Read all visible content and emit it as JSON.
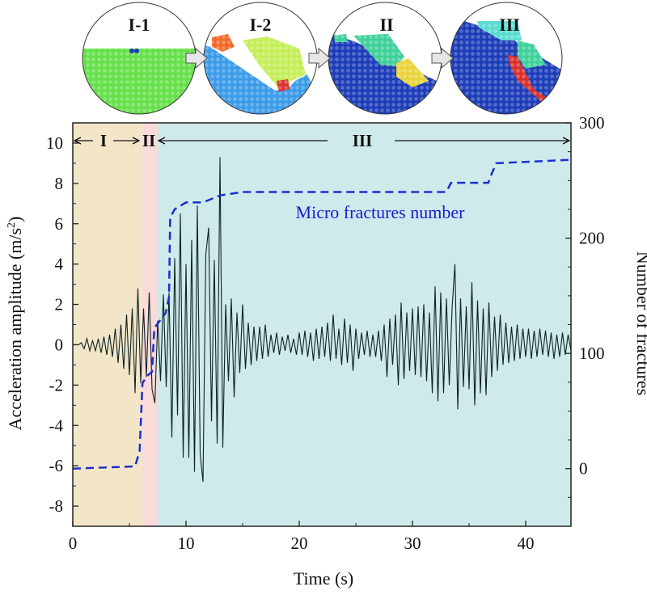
{
  "insets": [
    {
      "label": "I-1"
    },
    {
      "label": "I-2"
    },
    {
      "label": "II"
    },
    {
      "label": "III"
    }
  ],
  "colors": {
    "stage_I": "#f3e6c8",
    "stage_II": "#fbdada",
    "stage_III": "#cfeaea",
    "signal": "#0f2222",
    "fractures": "#1a2fd0",
    "green": "#66e04a",
    "lightblue": "#3b9be8",
    "darkblue": "#1c3cb8",
    "lime": "#c4ee58",
    "teal": "#3fd09a",
    "cyan": "#58dcd0",
    "yellow": "#e8d43a",
    "red": "#d8302a",
    "orange": "#f06a2a"
  },
  "chart_data": {
    "type": "line",
    "xlabel": "Time (s)",
    "ylabel": "Acceleration amplitude (m/s²)",
    "ylabel_parts": {
      "main": "Acceleration amplitude (m/s",
      "sup": "2",
      "end": ")"
    },
    "y2label": "Number of fractures",
    "xlim": [
      0,
      44
    ],
    "ylim": [
      -9,
      11
    ],
    "y2lim": [
      -50,
      300
    ],
    "xticks": [
      "0",
      "10",
      "20",
      "30",
      "40"
    ],
    "xtick_values": [
      0,
      10,
      20,
      30,
      40
    ],
    "yticks": [
      "10",
      "8",
      "6",
      "4",
      "2",
      "0",
      "-2",
      "-4",
      "-6",
      "-8"
    ],
    "ytick_values": [
      10,
      8,
      6,
      4,
      2,
      0,
      -2,
      -4,
      -6,
      -8
    ],
    "y2ticks": [
      "300",
      "200",
      "100",
      "0"
    ],
    "y2tick_values": [
      300,
      200,
      100,
      0
    ],
    "stages": [
      {
        "name": "I",
        "start": 0,
        "end": 6.1
      },
      {
        "name": "II",
        "start": 6.1,
        "end": 7.5
      },
      {
        "name": "III",
        "start": 7.5,
        "end": 44
      }
    ],
    "annotation": "Micro fractures number",
    "series": [
      {
        "name": "Acceleration amplitude",
        "axis": "left",
        "t_step": 0.25,
        "values": [
          0,
          0,
          0,
          0.1,
          -0.2,
          0.3,
          -0.3,
          0.2,
          -0.3,
          0.3,
          -0.4,
          0.4,
          -0.5,
          0.5,
          -0.6,
          0.8,
          -0.9,
          1.0,
          -1.2,
          1.5,
          -1.5,
          1.8,
          -2.4,
          2.8,
          -1.9,
          1.8,
          -1.6,
          2.6,
          -2.2,
          -2.9,
          1.2,
          -1.8,
          2.5,
          -2.1,
          2.6,
          -4.6,
          4.3,
          -3.5,
          6.5,
          -5.6,
          4.0,
          -5.6,
          5.2,
          -6.3,
          6.9,
          -5.4,
          -6.8,
          4.5,
          5.8,
          -3.8,
          4.2,
          -4.9,
          9.3,
          -5.1,
          2.0,
          -1.8,
          2.3,
          -2.6,
          1.6,
          -1.4,
          2.0,
          -1.2,
          1.1,
          -1.0,
          0.9,
          -0.8,
          0.9,
          -0.7,
          1.0,
          -0.6,
          0.5,
          -0.4,
          0.6,
          -0.5,
          0.4,
          -0.3,
          0.5,
          -0.4,
          0.3,
          -0.5,
          0.6,
          -0.5,
          0.7,
          -0.6,
          0.6,
          -0.8,
          0.8,
          -0.7,
          0.9,
          -0.6,
          1.1,
          -0.8,
          1.5,
          -0.7,
          0.8,
          -1.0,
          1.3,
          -0.9,
          1.0,
          -1.3,
          0.8,
          -0.7,
          0.6,
          -0.5,
          0.7,
          -0.6,
          0.5,
          -0.6,
          0.7,
          -0.8,
          1.0,
          -1.6,
          1.3,
          -1.0,
          1.5,
          -2.0,
          2.1,
          -1.7,
          1.6,
          -1.3,
          1.8,
          -1.5,
          1.9,
          -1.6,
          2.0,
          -1.8,
          1.6,
          -2.4,
          2.9,
          -2.8,
          2.6,
          -2.4,
          2.3,
          -2.0,
          1.8,
          4.0,
          -3.2,
          2.3,
          -2.1,
          1.9,
          -2.2,
          3.1,
          -3.0,
          2.2,
          -2.4,
          1.8,
          -2.5,
          2.1,
          -1.6,
          1.4,
          -1.3,
          1.5,
          -1.0,
          1.1,
          -0.9,
          0.9,
          -0.8,
          1.0,
          -0.7,
          0.8,
          -0.6,
          0.8,
          -0.7,
          0.7,
          -0.6,
          0.8,
          -0.5,
          0.7,
          -0.6,
          0.6,
          -0.7,
          0.5,
          -0.6,
          0.6,
          -0.5,
          0.5,
          -0.3
        ]
      },
      {
        "name": "Micro fractures number",
        "axis": "right",
        "style": "dashed",
        "x": [
          0,
          5.5,
          5.9,
          6.05,
          6.15,
          6.5,
          7.0,
          7.2,
          8.2,
          8.5,
          8.6,
          9.0,
          10.0,
          11.5,
          13.0,
          15.0,
          33.0,
          33.4,
          36.7,
          37.0,
          37.4,
          44.0
        ],
        "y": [
          0,
          2,
          15,
          50,
          74,
          80,
          84,
          122,
          135,
          149,
          218,
          225,
          231,
          231,
          237,
          240,
          240,
          248,
          248,
          256,
          265,
          268
        ]
      }
    ]
  }
}
